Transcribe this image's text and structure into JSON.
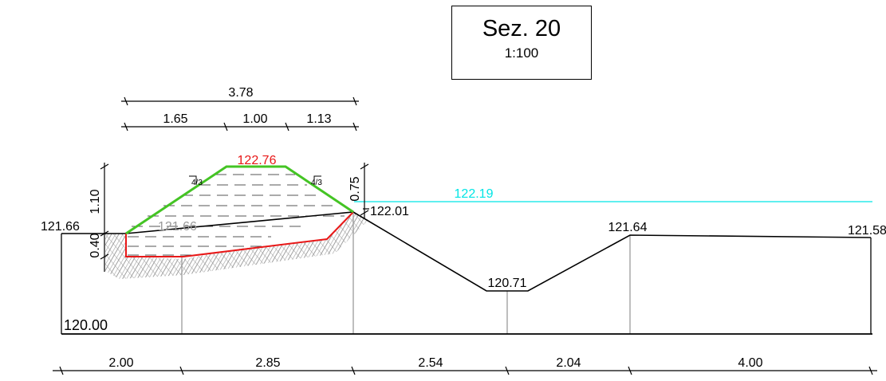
{
  "title": {
    "name": "Sez. 20",
    "scale": "1:100"
  },
  "colors": {
    "embankment": "#44c424",
    "excavation": "#e81818",
    "water": "#00e5e5",
    "ground": "#000000",
    "hatch": "#a0a0a0",
    "grey_text": "#9a9a9a"
  },
  "top_dimensions": {
    "total": "3.78",
    "parts": [
      "1.65",
      "1.00",
      "1.13"
    ]
  },
  "vertical_dimensions": {
    "left_upper": "1.10",
    "left_lower": "0.40",
    "right": "0.75"
  },
  "elevations": {
    "crest": "122.76",
    "water": "122.19",
    "left_edge": "121.66",
    "left_grey": "121.66",
    "embankment_toe": "122.01",
    "ditch_bottom": "120.71",
    "right_bank": "121.64",
    "right_end": "121.58",
    "datum": "120.00"
  },
  "slope_labels": [
    "4/3",
    "4/3"
  ],
  "bottom_dimensions": [
    "2.00",
    "2.85",
    "2.54",
    "2.04",
    "4.00"
  ]
}
